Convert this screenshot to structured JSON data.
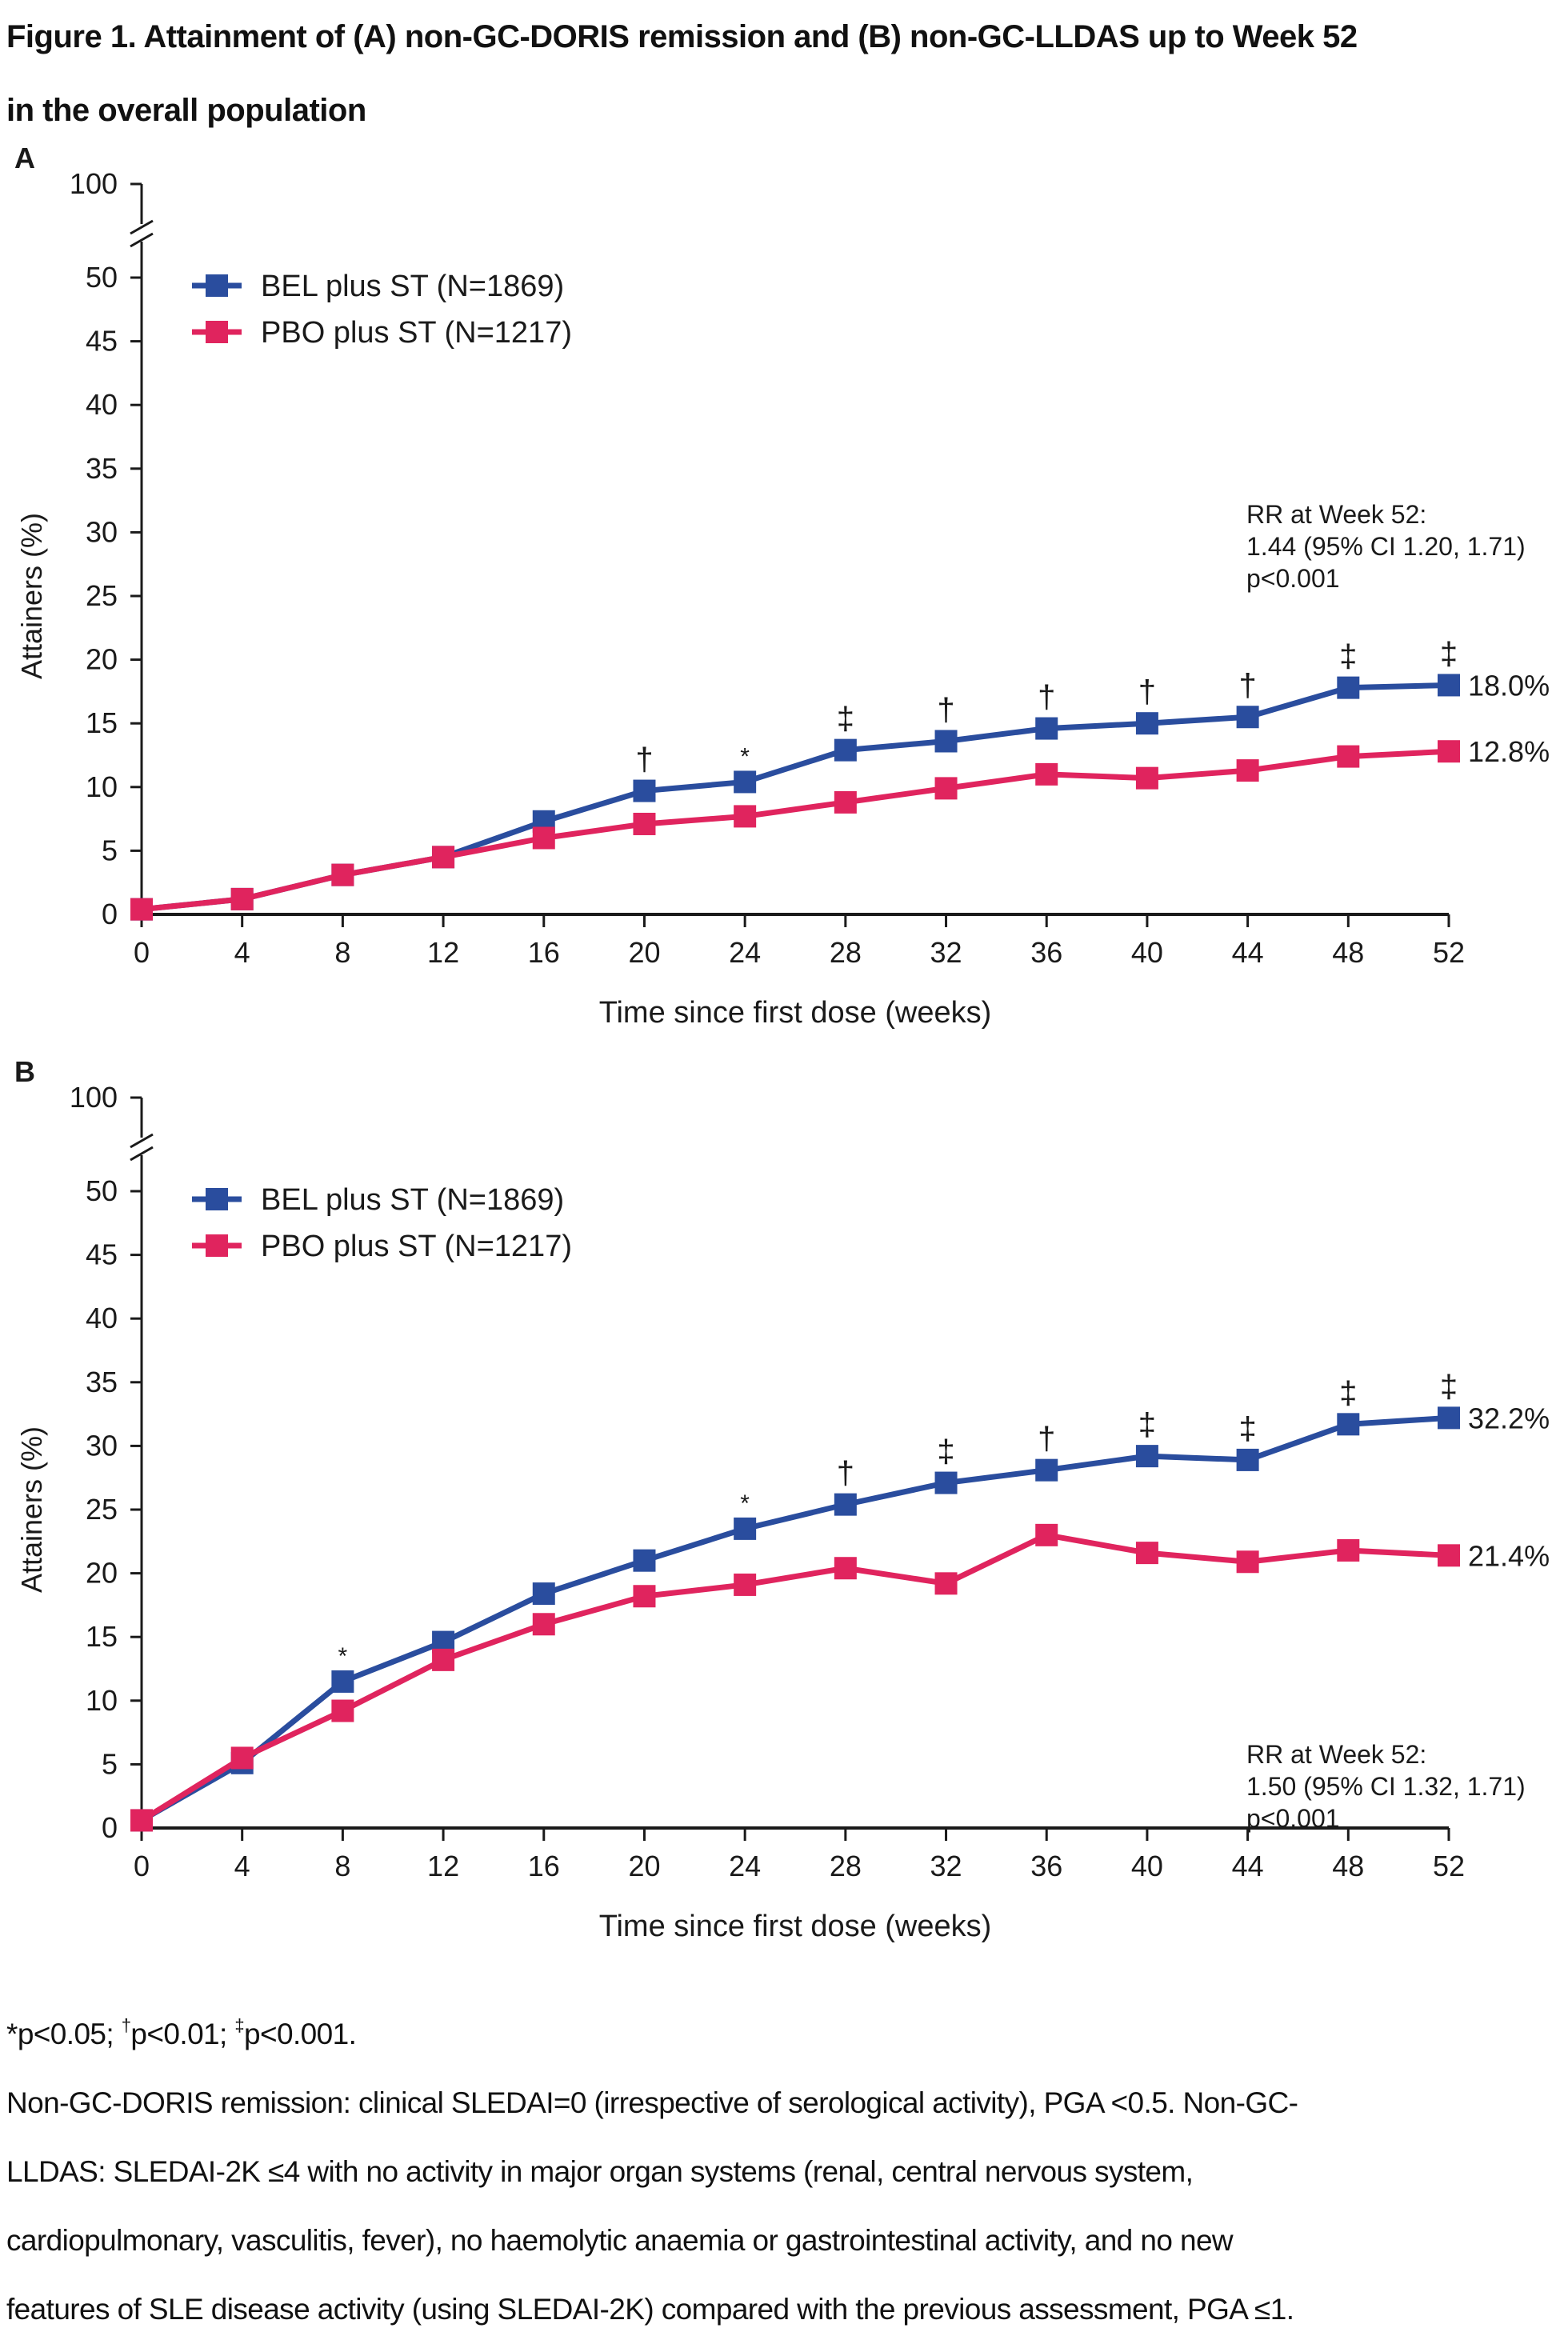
{
  "figure": {
    "title_line1": "Figure 1. Attainment of (A) non-GC-DORIS remission and (B) non-GC-LLDAS up to Week 52",
    "title_line2": "in the overall population"
  },
  "colors": {
    "bel": "#2a4d9e",
    "pbo": "#e0245e",
    "axis": "#1a1a1a"
  },
  "chart_data": [
    {
      "type": "line",
      "panel_label": "A",
      "title": "Non-GC-DORIS remission",
      "xlabel": "Time since first dose (weeks)",
      "ylabel": "Attainers (%)",
      "x": [
        0,
        4,
        8,
        12,
        16,
        20,
        24,
        28,
        32,
        36,
        40,
        44,
        48,
        52
      ],
      "x_ticks": [
        "0",
        "4",
        "8",
        "12",
        "16",
        "20",
        "24",
        "28",
        "32",
        "36",
        "40",
        "44",
        "48",
        "52"
      ],
      "y_ticks": [
        "0",
        "5",
        "10",
        "15",
        "20",
        "25",
        "30",
        "35",
        "40",
        "45",
        "50"
      ],
      "y_break_tick": "100",
      "ylim": [
        0,
        50
      ],
      "axis_break": true,
      "grid": false,
      "legend_position": "top-left",
      "series": [
        {
          "name": "BEL plus ST (N=1869)",
          "key": "bel",
          "values": [
            0.4,
            1.2,
            3.1,
            4.5,
            7.3,
            9.7,
            10.4,
            12.9,
            13.6,
            14.6,
            15.0,
            15.5,
            17.8,
            18.0
          ],
          "end_label": "18.0%"
        },
        {
          "name": "PBO plus ST (N=1217)",
          "key": "pbo",
          "values": [
            0.4,
            1.2,
            3.1,
            4.5,
            6.0,
            7.1,
            7.7,
            8.8,
            9.9,
            11.0,
            10.7,
            11.3,
            12.4,
            12.8
          ],
          "end_label": "12.8%"
        }
      ],
      "significance": [
        "",
        "",
        "",
        "",
        "",
        "†",
        "*",
        "‡",
        "†",
        "†",
        "†",
        "†",
        "‡",
        "‡"
      ],
      "annotation": [
        "RR at Week 52:",
        "1.44 (95% CI 1.20, 1.71)",
        "p<0.001"
      ],
      "annotation_position": "upper-right"
    },
    {
      "type": "line",
      "panel_label": "B",
      "title": "Non-GC-LLDAS",
      "xlabel": "Time since first dose (weeks)",
      "ylabel": "Attainers (%)",
      "x": [
        0,
        4,
        8,
        12,
        16,
        20,
        24,
        28,
        32,
        36,
        40,
        44,
        48,
        52
      ],
      "x_ticks": [
        "0",
        "4",
        "8",
        "12",
        "16",
        "20",
        "24",
        "28",
        "32",
        "36",
        "40",
        "44",
        "48",
        "52"
      ],
      "y_ticks": [
        "0",
        "5",
        "10",
        "15",
        "20",
        "25",
        "30",
        "35",
        "40",
        "45",
        "50"
      ],
      "y_break_tick": "100",
      "ylim": [
        0,
        50
      ],
      "axis_break": true,
      "grid": false,
      "legend_position": "top-left",
      "series": [
        {
          "name": "BEL plus ST (N=1869)",
          "key": "bel",
          "values": [
            0.6,
            5.1,
            11.5,
            14.6,
            18.4,
            21.0,
            23.5,
            25.4,
            27.1,
            28.1,
            29.2,
            28.9,
            31.7,
            32.2
          ],
          "end_label": "32.2%"
        },
        {
          "name": "PBO plus ST (N=1217)",
          "key": "pbo",
          "values": [
            0.6,
            5.5,
            9.2,
            13.2,
            16.0,
            18.2,
            19.1,
            20.4,
            19.2,
            23.0,
            21.6,
            20.9,
            21.8,
            21.4
          ],
          "end_label": "21.4%"
        }
      ],
      "significance": [
        "",
        "",
        "*",
        "",
        "",
        "",
        "*",
        "†",
        "‡",
        "†",
        "‡",
        "‡",
        "‡",
        "‡"
      ],
      "annotation": [
        "RR at Week 52:",
        "1.50 (95% CI 1.32, 1.71)",
        "p<0.001"
      ],
      "annotation_position": "lower-right"
    }
  ],
  "footnotes": {
    "sig_1_sym": "*",
    "sig_1_text": "p<0.05; ",
    "sig_2_sym": "†",
    "sig_2_text": "p<0.01; ",
    "sig_3_sym": "‡",
    "sig_3_text": "p<0.001.",
    "definition_lines": [
      "Non-GC-DORIS remission: clinical SLEDAI=0 (irrespective of serological activity), PGA <0.5. Non-GC-",
      "LLDAS: SLEDAI-2K ≤4 with no activity in major organ systems (renal, central nervous system,",
      "cardiopulmonary, vasculitis, fever), no haemolytic anaemia or gastrointestinal activity, and no new",
      "features of SLE disease activity (using SLEDAI-2K) compared with the previous assessment, PGA ≤1."
    ]
  }
}
